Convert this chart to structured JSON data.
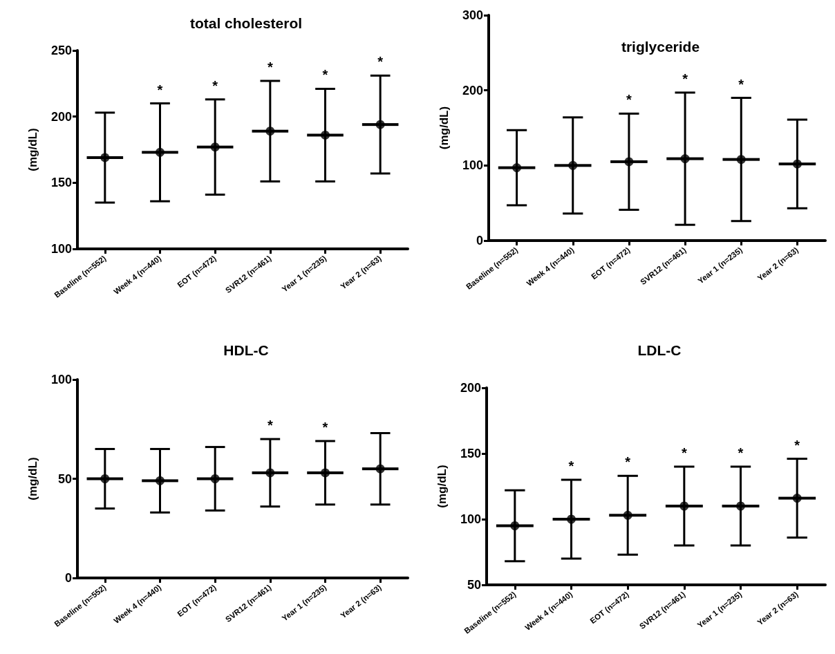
{
  "chart_data": [
    {
      "type": "scatter",
      "title": "total cholesterol",
      "ylabel": "(mg/dL)",
      "categories": [
        "Baseline (n=552)",
        "Week 4 (n=440)",
        "EOT (n=472)",
        "SVR12 (n=461)",
        "Year 1 (n=235)",
        "Year 2 (n=63)"
      ],
      "values": [
        169,
        173,
        177,
        189,
        186,
        194
      ],
      "errors": [
        [
          135,
          203
        ],
        [
          136,
          210
        ],
        [
          141,
          213
        ],
        [
          151,
          227
        ],
        [
          151,
          221
        ],
        [
          157,
          231
        ]
      ],
      "color": "#000000",
      "marker": "circle",
      "ylim": [
        100,
        250
      ],
      "yticks": [
        100,
        150,
        200,
        250
      ],
      "grid": false,
      "annotations": [
        {
          "text": "*",
          "x": "Week 4 (n=440)",
          "y": 210
        },
        {
          "text": "*",
          "x": "EOT (n=472)",
          "y": 213
        },
        {
          "text": "*",
          "x": "SVR12 (n=461)",
          "y": 227
        },
        {
          "text": "*",
          "x": "Year 1 (n=235)",
          "y": 221
        },
        {
          "text": "*",
          "x": "Year 2 (n=63)",
          "y": 231
        }
      ]
    },
    {
      "type": "scatter",
      "title": "triglyceride",
      "ylabel": "(mg/dL)",
      "categories": [
        "Baseline (n=552)",
        "Week 4 (n=440)",
        "EOT (n=472)",
        "SVR12 (n=461)",
        "Year 1 (n=235)",
        "Year 2 (n=63)"
      ],
      "values": [
        97,
        100,
        105,
        109,
        108,
        102
      ],
      "errors": [
        [
          47,
          147
        ],
        [
          36,
          164
        ],
        [
          41,
          169
        ],
        [
          21,
          197
        ],
        [
          26,
          190
        ],
        [
          43,
          161
        ]
      ],
      "color": "#000000",
      "marker": "circle",
      "ylim": [
        0,
        300
      ],
      "yticks": [
        0,
        100,
        200,
        300
      ],
      "grid": false,
      "annotations": [
        {
          "text": "*",
          "x": "EOT (n=472)",
          "y": 169
        },
        {
          "text": "*",
          "x": "SVR12 (n=461)",
          "y": 197
        },
        {
          "text": "*",
          "x": "Year 1 (n=235)",
          "y": 190
        }
      ]
    },
    {
      "type": "scatter",
      "title": "HDL-C",
      "ylabel": "(mg/dL)",
      "categories": [
        "Baseline (n=552)",
        "Week 4 (n=440)",
        "EOT (n=472)",
        "SVR12 (n=461)",
        "Year 1 (n=235)",
        "Year 2 (n=63)"
      ],
      "values": [
        50,
        49,
        50,
        53,
        53,
        55
      ],
      "errors": [
        [
          35,
          65
        ],
        [
          33,
          65
        ],
        [
          34,
          66
        ],
        [
          36,
          70
        ],
        [
          37,
          69
        ],
        [
          37,
          73
        ]
      ],
      "color": "#000000",
      "marker": "circle",
      "ylim": [
        0,
        100
      ],
      "yticks": [
        0,
        50,
        100
      ],
      "grid": false,
      "annotations": [
        {
          "text": "*",
          "x": "SVR12 (n=461)",
          "y": 70
        },
        {
          "text": "*",
          "x": "Year 1 (n=235)",
          "y": 69
        }
      ]
    },
    {
      "type": "scatter",
      "title": "LDL-C",
      "ylabel": "(mg/dL)",
      "categories": [
        "Baseline (n=552)",
        "Week 4 (n=440)",
        "EOT (n=472)",
        "SVR12 (n=461)",
        "Year 1 (n=235)",
        "Year 2 (n=63)"
      ],
      "values": [
        95,
        100,
        103,
        110,
        110,
        116
      ],
      "errors": [
        [
          68,
          122
        ],
        [
          70,
          130
        ],
        [
          73,
          133
        ],
        [
          80,
          140
        ],
        [
          80,
          140
        ],
        [
          86,
          146
        ]
      ],
      "color": "#000000",
      "marker": "circle",
      "ylim": [
        50,
        200
      ],
      "yticks": [
        50,
        100,
        150,
        200
      ],
      "grid": false,
      "annotations": [
        {
          "text": "*",
          "x": "Week 4 (n=440)",
          "y": 130
        },
        {
          "text": "*",
          "x": "EOT (n=472)",
          "y": 133
        },
        {
          "text": "*",
          "x": "SVR12 (n=461)",
          "y": 140
        },
        {
          "text": "*",
          "x": "Year 1 (n=235)",
          "y": 140
        },
        {
          "text": "*",
          "x": "Year 2 (n=63)",
          "y": 146
        }
      ]
    }
  ]
}
